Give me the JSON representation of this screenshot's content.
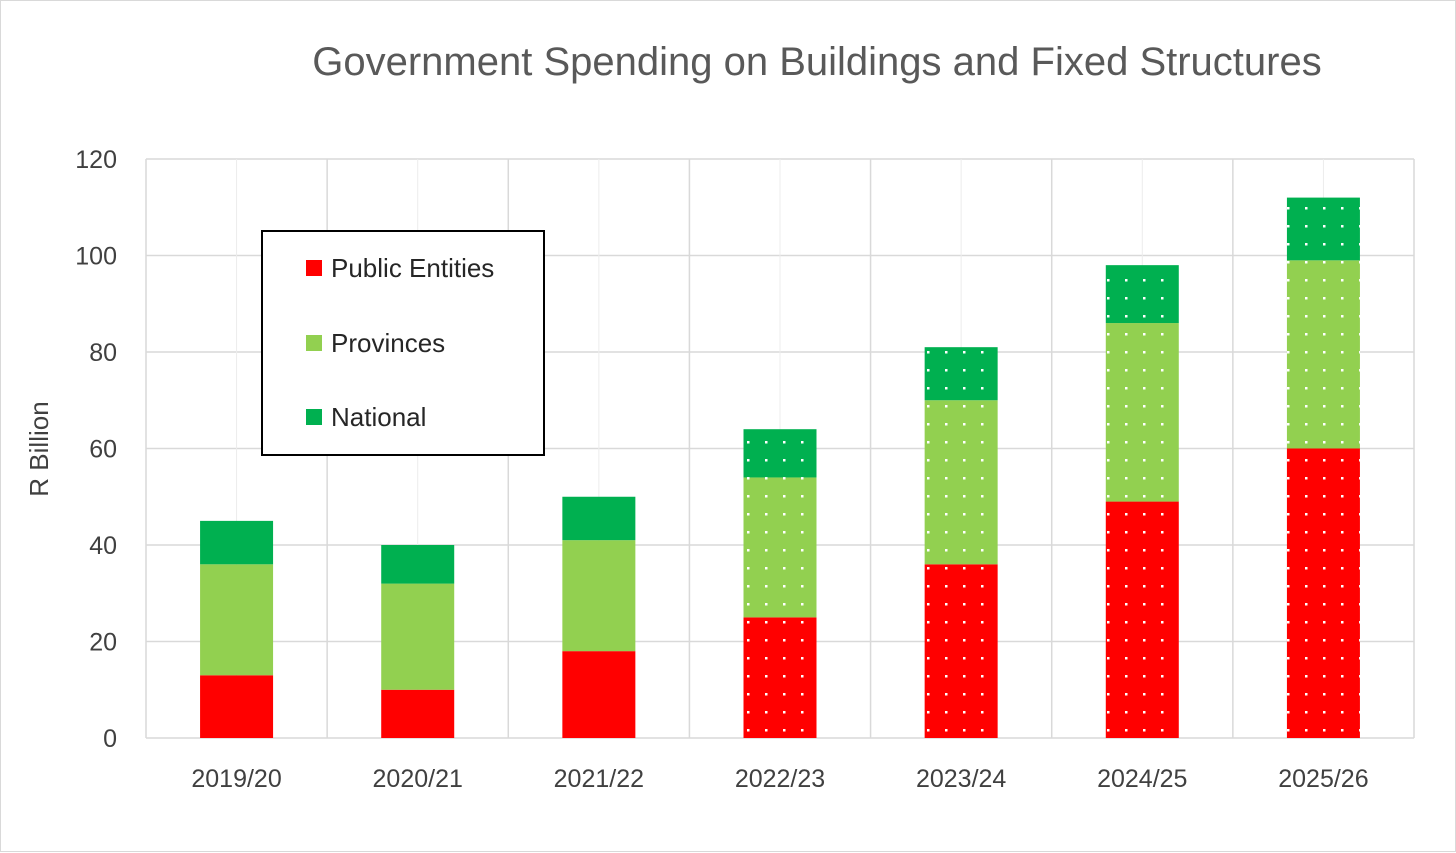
{
  "chart_data": {
    "type": "bar",
    "stacked": true,
    "title": "Government Spending on Buildings and Fixed Structures",
    "xlabel": "",
    "ylabel": "R Billion",
    "ylim": [
      0,
      120
    ],
    "yticks": [
      0,
      20,
      40,
      60,
      80,
      100,
      120
    ],
    "grid": true,
    "legend_position": "top-left",
    "categories": [
      "2019/20",
      "2020/21",
      "2021/22",
      "2022/23",
      "2023/24",
      "2024/25",
      "2025/26"
    ],
    "dotted_categories": [
      "2022/23",
      "2023/24",
      "2024/25",
      "2025/26"
    ],
    "series": [
      {
        "name": "Public Entities",
        "color": "#ff0000",
        "values": [
          13,
          10,
          18,
          25,
          36,
          49,
          60
        ]
      },
      {
        "name": "Provinces",
        "color": "#92d050",
        "values": [
          23,
          22,
          23,
          29,
          34,
          37,
          39
        ]
      },
      {
        "name": "National",
        "color": "#00b050",
        "values": [
          9,
          8,
          9,
          10,
          11,
          12,
          13
        ]
      }
    ]
  }
}
